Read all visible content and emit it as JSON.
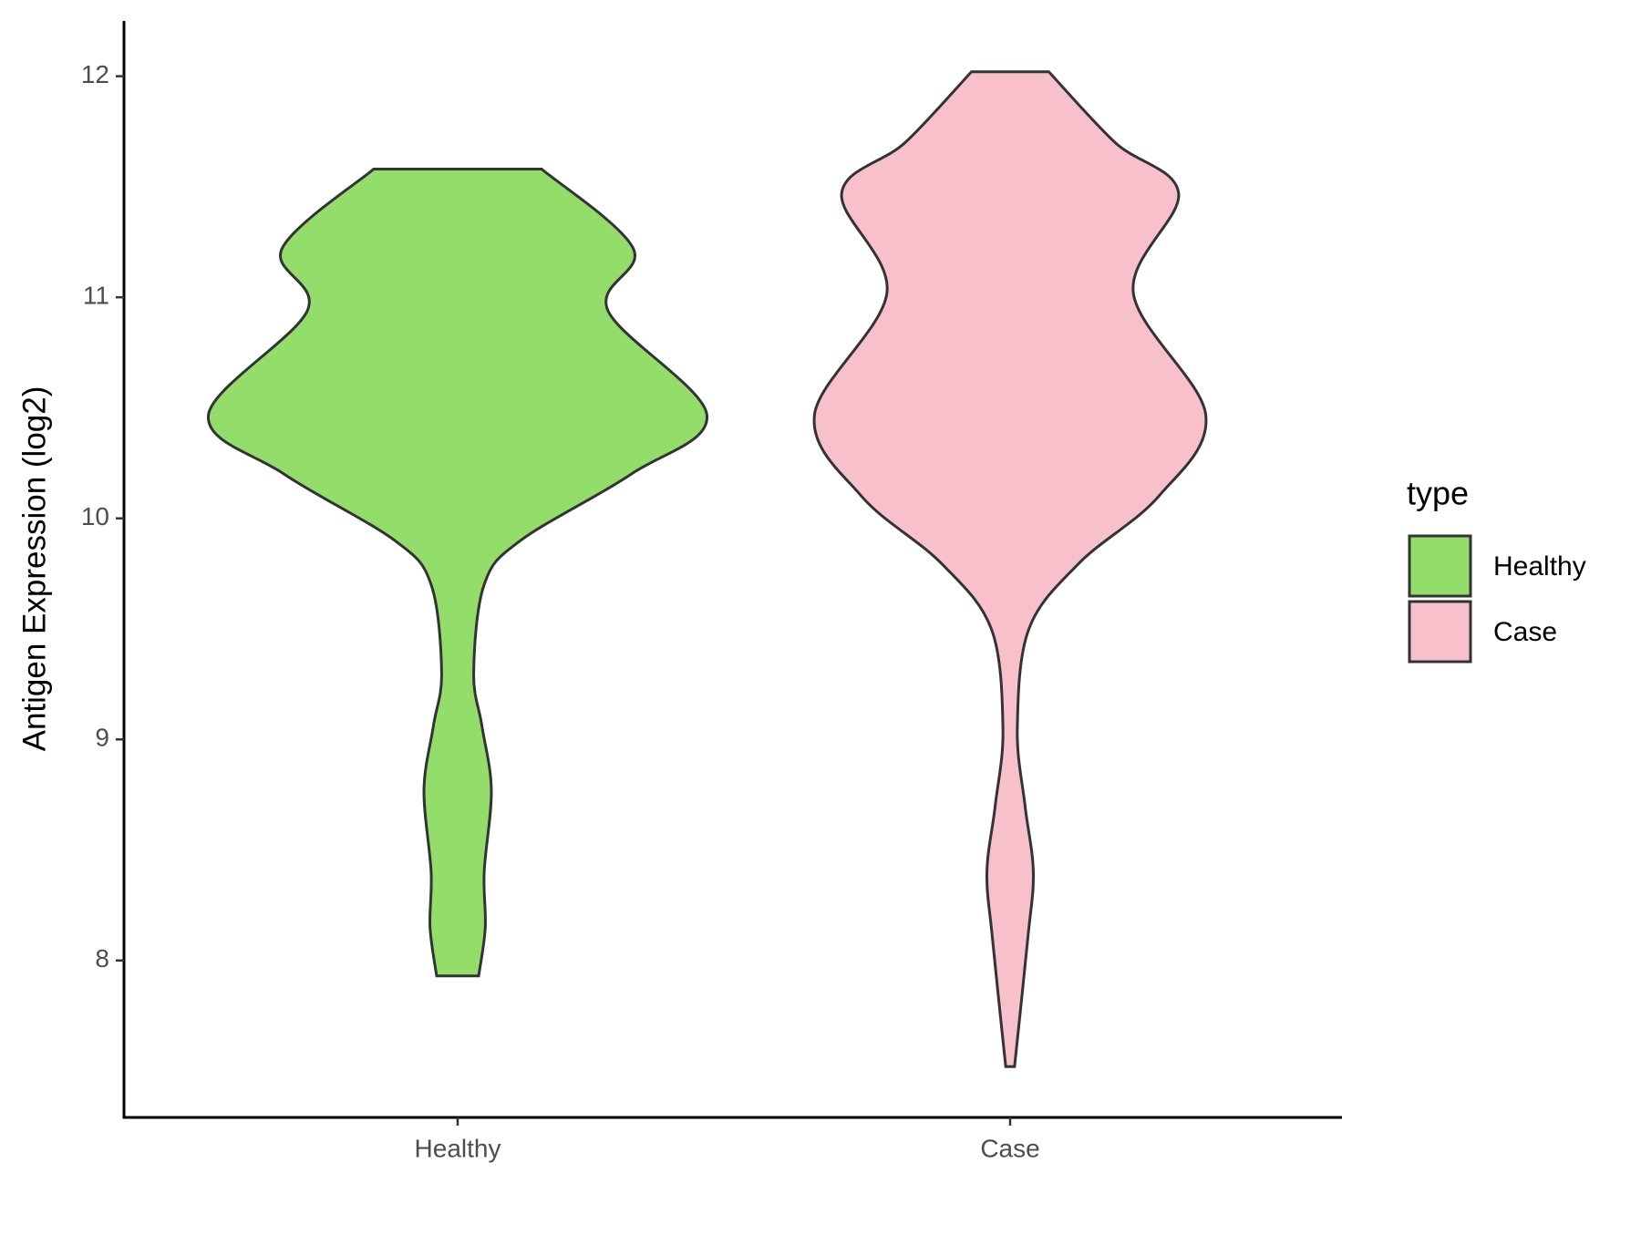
{
  "chart_data": {
    "type": "violin",
    "ylabel": "Antigen Expression (log2)",
    "categories": [
      "Healthy",
      "Case"
    ],
    "series": [
      {
        "name": "Healthy",
        "color": "#93dd6b",
        "y": [
          11.58,
          11.22,
          10.94,
          10.47,
          10.2,
          9.9,
          9.7,
          9.3,
          9.06,
          8.77,
          8.4,
          8.15,
          7.93
        ],
        "half_width": [
          0.152,
          0.318,
          0.272,
          0.451,
          0.314,
          0.114,
          0.048,
          0.029,
          0.044,
          0.061,
          0.048,
          0.05,
          0.038
        ]
      },
      {
        "name": "Case",
        "color": "#f7c0cb",
        "y": [
          12.02,
          11.7,
          11.47,
          11.02,
          10.47,
          10.1,
          9.8,
          9.5,
          9.05,
          8.7,
          8.4,
          8.1,
          7.52
        ],
        "half_width": [
          0.07,
          0.19,
          0.305,
          0.223,
          0.354,
          0.269,
          0.126,
          0.034,
          0.013,
          0.027,
          0.042,
          0.032,
          0.008
        ]
      }
    ],
    "ylim": [
      7.29,
      12.25
    ],
    "yticks": [
      8,
      9,
      10,
      11,
      12
    ],
    "legend_title": "type",
    "legend": "right",
    "outline_color": "#333333"
  }
}
